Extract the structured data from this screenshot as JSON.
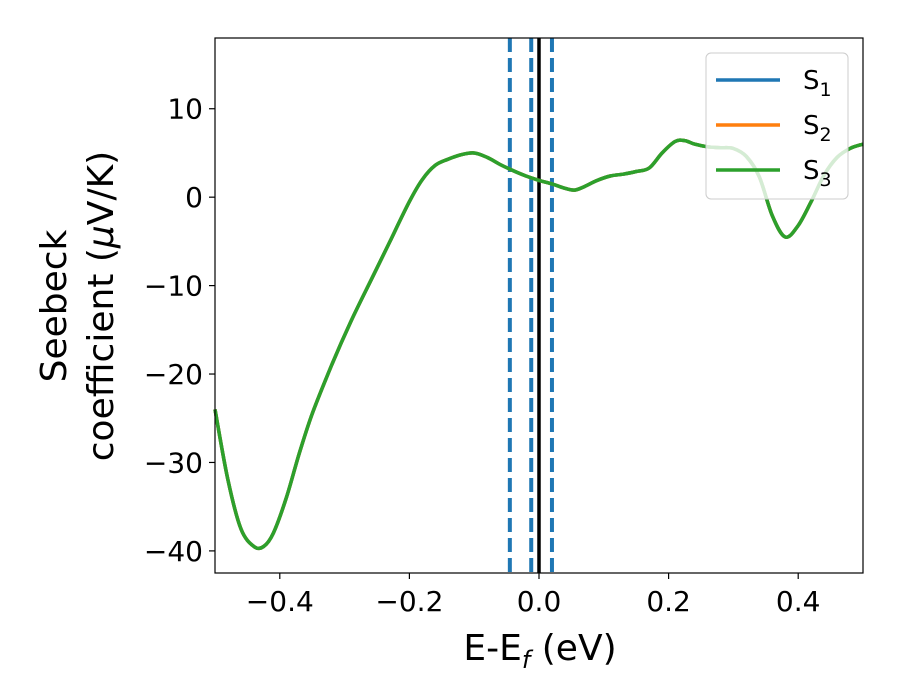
{
  "chart_data": {
    "type": "line",
    "xlabel": {
      "main": "E-E",
      "sub": "f",
      "tail": " (eV)"
    },
    "ylabel": {
      "line1": "Seebeck",
      "line2": "coefficient  (",
      "mu": "μ",
      "line2_tail": "V/K)"
    },
    "xlim": [
      -0.5,
      0.5
    ],
    "ylim": [
      -42.5,
      18.0
    ],
    "xticks": [
      -0.4,
      -0.2,
      0.0,
      0.2,
      0.4
    ],
    "xtick_labels": [
      "−0.4",
      "−0.2",
      "0.0",
      "0.2",
      "0.4"
    ],
    "yticks": [
      -40,
      -30,
      -20,
      -10,
      0,
      10
    ],
    "ytick_labels": [
      "−40",
      "−30",
      "−20",
      "−10",
      "0",
      "10"
    ],
    "grid": false,
    "legend_position": "top-right",
    "series": [
      {
        "name": "S",
        "sub": "1",
        "color": "#1f77b4"
      },
      {
        "name": "S",
        "sub": "2",
        "color": "#ff7f0e"
      },
      {
        "name": "S",
        "sub": "3",
        "color": "#2ca02c"
      }
    ],
    "x": [
      -0.5,
      -0.48,
      -0.46,
      -0.44,
      -0.425,
      -0.41,
      -0.39,
      -0.37,
      -0.35,
      -0.32,
      -0.29,
      -0.26,
      -0.23,
      -0.2,
      -0.18,
      -0.16,
      -0.14,
      -0.12,
      -0.1,
      -0.08,
      -0.06,
      -0.04,
      -0.02,
      0.0,
      0.02,
      0.04,
      0.055,
      0.07,
      0.09,
      0.11,
      0.13,
      0.15,
      0.17,
      0.19,
      0.21,
      0.225,
      0.24,
      0.26,
      0.28,
      0.3,
      0.32,
      0.34,
      0.36,
      0.38,
      0.4,
      0.42,
      0.44,
      0.46,
      0.48,
      0.5
    ],
    "y": [
      -24.0,
      -32.0,
      -37.5,
      -39.5,
      -39.5,
      -38.0,
      -34.0,
      -29.0,
      -24.5,
      -19.0,
      -14.0,
      -9.5,
      -5.0,
      -0.5,
      2.0,
      3.6,
      4.3,
      4.8,
      5.0,
      4.5,
      3.7,
      3.0,
      2.4,
      1.9,
      1.5,
      1.0,
      0.8,
      1.2,
      1.9,
      2.4,
      2.6,
      2.9,
      3.3,
      5.0,
      6.3,
      6.4,
      6.0,
      5.7,
      5.6,
      5.5,
      4.6,
      2.3,
      -2.1,
      -4.5,
      -3.2,
      -0.5,
      2.5,
      4.5,
      5.5,
      6.0
    ],
    "vlines": [
      {
        "x": -0.045,
        "style": "dashed",
        "color": "#1f77b4"
      },
      {
        "x": -0.012,
        "style": "dashed",
        "color": "#1f77b4"
      },
      {
        "x": 0.0,
        "style": "solid",
        "color": "#000000"
      },
      {
        "x": 0.02,
        "style": "dashed",
        "color": "#1f77b4"
      }
    ]
  }
}
